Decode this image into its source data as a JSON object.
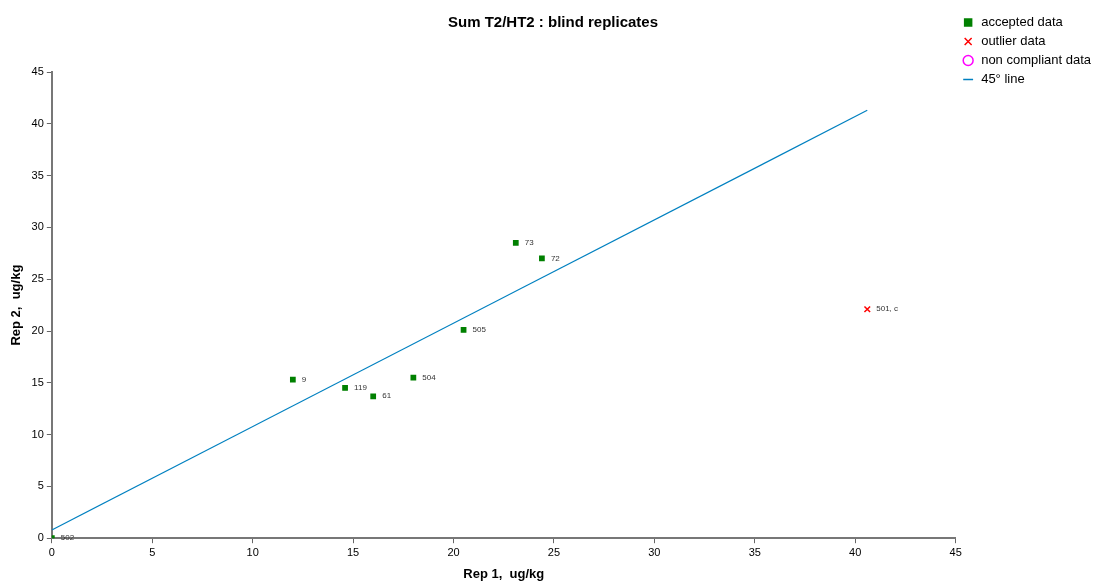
{
  "chart_data": {
    "type": "scatter",
    "title": "Sum T2/HT2 : blind replicates",
    "xlabel": "Rep 1,  ug/kg",
    "ylabel": "Rep 2,  ug/kg",
    "xlim": [
      0,
      45
    ],
    "xticks": [
      0,
      5,
      10,
      15,
      20,
      25,
      30,
      35,
      40,
      45
    ],
    "ylim": [
      0,
      45
    ],
    "yticks": [
      0,
      5,
      10,
      15,
      20,
      25,
      30,
      35,
      40,
      45
    ],
    "grid": false,
    "legend": "top right",
    "series": [
      {
        "name": "accepted data",
        "color": "#008000",
        "marker": "square",
        "x": [
          12.0,
          14.6,
          16.0,
          18.0,
          20.5,
          23.1,
          24.4,
          0
        ],
        "values": [
          15.3,
          14.5,
          13.7,
          15.5,
          20.1,
          28.5,
          27.0,
          0
        ]
      },
      {
        "name": "outlier data",
        "color": "#ff0000",
        "marker": "cross",
        "x": [
          40.6
        ],
        "values": [
          22.1
        ]
      },
      {
        "name": "non compliant data",
        "color": "#ff00ff",
        "marker": "circle"
      },
      {
        "name": "45° line",
        "type": "line",
        "color": "#0080c0",
        "marker": "none",
        "x": [
          0,
          40.6
        ],
        "values": [
          0.8,
          41.3
        ]
      }
    ],
    "annotations": [
      {
        "text": "9",
        "x": 12.0,
        "y": 15.3
      },
      {
        "text": "119",
        "x": 14.6,
        "y": 14.5
      },
      {
        "text": "61",
        "x": 16.0,
        "y": 13.7
      },
      {
        "text": "504",
        "x": 18.0,
        "y": 15.5
      },
      {
        "text": "505",
        "x": 20.5,
        "y": 20.1
      },
      {
        "text": "73",
        "x": 23.1,
        "y": 28.5
      },
      {
        "text": "72",
        "x": 24.4,
        "y": 27.0
      },
      {
        "text": "502",
        "x": 0,
        "y": 0
      },
      {
        "text": "501, c",
        "x": 40.6,
        "y": 22.1
      }
    ]
  }
}
